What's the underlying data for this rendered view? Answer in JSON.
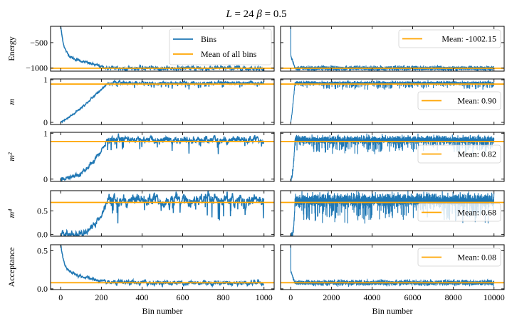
{
  "chart_data": {
    "type": "line",
    "title": "L = 24   β = 0.5",
    "title_parts": {
      "L_label": "L",
      "L_value": "24",
      "beta_label": "β",
      "beta_value": "0.5"
    },
    "xlabel": "Bin number",
    "colors": {
      "bins": "#1f77b4",
      "mean": "#ffa500"
    },
    "columns": [
      {
        "id": "left",
        "xlim": [
          -50,
          1050
        ],
        "xticks": [
          0,
          200,
          400,
          600,
          800,
          1000
        ],
        "n_bins": 1000
      },
      {
        "id": "right",
        "xlim": [
          -500,
          10500
        ],
        "xticks": [
          0,
          2000,
          4000,
          6000,
          8000,
          10000
        ],
        "n_bins": 10000
      }
    ],
    "rows": [
      {
        "ylabel": "Energy",
        "ylabel_math": false,
        "ylim": [
          -1060,
          -180
        ],
        "yticks": [
          -1000,
          -500
        ],
        "ytick_labels": [
          "−1000",
          "−500"
        ],
        "mean": -1002.15,
        "mean_label": "Mean: -1002.15",
        "series_profile": {
          "start": -180,
          "plateau": -1002,
          "burn_in_1000": 230,
          "noise": 25
        }
      },
      {
        "ylabel": "m",
        "ylabel_math": true,
        "ylim": [
          -0.05,
          1.02
        ],
        "yticks": [
          0,
          1
        ],
        "ytick_labels": [
          "0",
          "1"
        ],
        "mean": 0.9,
        "mean_label": "Mean: 0.90",
        "series_profile": {
          "start": 0.0,
          "plateau": 0.92,
          "burn_in_1000": 230,
          "noise": 0.025
        }
      },
      {
        "ylabel": "m²",
        "ylabel_math": true,
        "ylim": [
          -0.05,
          1.02
        ],
        "yticks": [
          0,
          1
        ],
        "ytick_labels": [
          "0",
          "1"
        ],
        "mean": 0.82,
        "mean_label": "Mean: 0.82",
        "series_profile": {
          "start": 0.0,
          "plateau": 0.85,
          "burn_in_1000": 230,
          "noise": 0.05
        }
      },
      {
        "ylabel": "m⁴",
        "ylabel_math": true,
        "ylim": [
          -0.04,
          0.93
        ],
        "yticks": [
          0.0,
          0.5
        ],
        "ytick_labels": [
          "0.0",
          "0.5"
        ],
        "mean": 0.68,
        "mean_label": "Mean: 0.68",
        "series_profile": {
          "start": 0.0,
          "plateau": 0.72,
          "burn_in_1000": 230,
          "noise": 0.08
        }
      },
      {
        "ylabel": "Acceptance",
        "ylabel_math": false,
        "ylim": [
          -0.01,
          0.58
        ],
        "yticks": [
          0.0,
          0.5
        ],
        "ytick_labels": [
          "0.0",
          "0.5"
        ],
        "mean": 0.08,
        "mean_label": "Mean: 0.08",
        "series_profile": {
          "start": 0.58,
          "plateau": 0.08,
          "burn_in_1000": 230,
          "noise": 0.02
        }
      }
    ],
    "legend_first_panel": {
      "entries": [
        "Bins",
        "Mean of all bins"
      ],
      "position": "upper-right"
    },
    "legend_right_panels": {
      "position": "upper-right / center-right"
    }
  }
}
